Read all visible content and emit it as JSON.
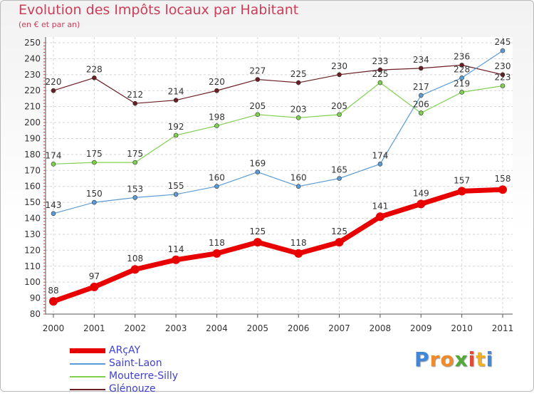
{
  "title": "Evolution des Impôts locaux par Habitant",
  "subtitle": "(en € et par an)",
  "logo": {
    "letters": [
      "P",
      "r",
      "o",
      "x",
      "i",
      "t",
      "i"
    ],
    "colors": [
      "#3f88d9",
      "#f08a2a",
      "#f08a2a",
      "#52a83a",
      "#e04a3a",
      "#f0b020",
      "#3f88d9"
    ]
  },
  "chart_data": {
    "type": "line",
    "title": "Evolution des Impôts locaux par Habitant",
    "subtitle": "(en € et par an)",
    "x": [
      "2000",
      "2001",
      "2002",
      "2003",
      "2004",
      "2005",
      "2006",
      "2007",
      "2008",
      "2009",
      "2010",
      "2011"
    ],
    "yticks": [
      "80",
      "90",
      "100",
      "110",
      "120",
      "130",
      "140",
      "150",
      "160",
      "170",
      "180",
      "190",
      "200",
      "210",
      "220",
      "230",
      "240",
      "250"
    ],
    "ylim": [
      80,
      250
    ],
    "grid": true,
    "legend_position": "bottom-left",
    "series": [
      {
        "name": "Glénouze",
        "color": "#6b1e24",
        "values": [
          220,
          228,
          212,
          214,
          220,
          227,
          225,
          230,
          233,
          234,
          236,
          230
        ]
      },
      {
        "name": "Mouterre-Silly",
        "color": "#80d050",
        "values": [
          174,
          175,
          175,
          192,
          198,
          205,
          203,
          205,
          225,
          206,
          219,
          223
        ]
      },
      {
        "name": "Saint-Laon",
        "color": "#5b9bd5",
        "values": [
          143,
          150,
          153,
          155,
          160,
          169,
          160,
          165,
          174,
          217,
          228,
          245
        ]
      },
      {
        "name": "ARçAY",
        "color": "#e80000",
        "values": [
          88,
          97,
          108,
          114,
          118,
          125,
          118,
          125,
          141,
          149,
          157,
          158
        ]
      }
    ],
    "legend": [
      "ARçAY",
      "Saint-Laon",
      "Mouterre-Silly",
      "Glénouze"
    ]
  }
}
